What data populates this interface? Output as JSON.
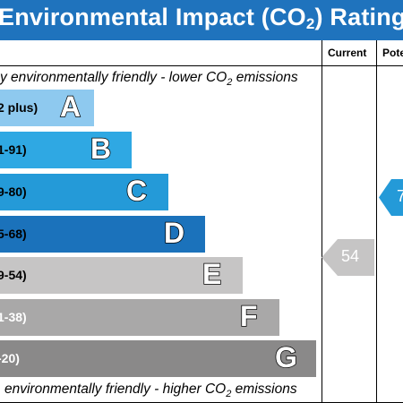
{
  "header": {
    "title_part1": "Environmental Impact (CO",
    "title_sub": "2",
    "title_part2": ") Rating",
    "bg_color": "#1f73bd"
  },
  "columns": {
    "current": "Current",
    "potential": "Pote"
  },
  "notes": {
    "top_part1": "y environmentally friendly - lower CO",
    "top_sub": "2",
    "top_part2": " emissions",
    "bottom_part1": "environmentally friendly - higher CO",
    "bottom_sub": "2",
    "bottom_part2": " emissions"
  },
  "bands": [
    {
      "range": "2 plus)",
      "letter": "A",
      "color": "#8ec9ef",
      "range_color": "#000000"
    },
    {
      "range": "1-91)",
      "letter": "B",
      "color": "#2fa8e3",
      "range_color": "#000000"
    },
    {
      "range": "9-80)",
      "letter": "C",
      "color": "#249ad8",
      "range_color": "#000000"
    },
    {
      "range": "5-68)",
      "letter": "D",
      "color": "#1b72bb",
      "range_color": "#000000"
    },
    {
      "range": "9-54)",
      "letter": "E",
      "color": "#c6c5c5",
      "range_color": "#000000"
    },
    {
      "range": "1-38)",
      "letter": "F",
      "color": "#a9a8a8",
      "range_color": "#ffffff"
    },
    {
      "range": "-20)",
      "letter": "G",
      "color": "#8a8989",
      "range_color": "#ffffff"
    }
  ],
  "current_rating": {
    "value": "54",
    "color": "#c6c5c5"
  },
  "potential_rating": {
    "value": "7",
    "color": "#249ad8"
  }
}
